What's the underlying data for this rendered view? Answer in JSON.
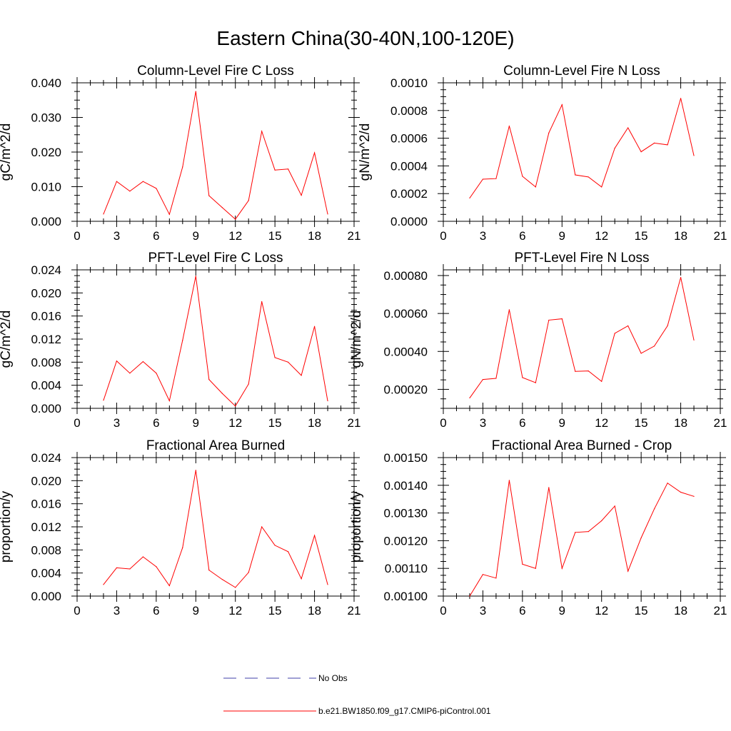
{
  "title": "Eastern China(30-40N,100-120E)",
  "colors": {
    "series": "#ff0000",
    "obs": "#4040aa",
    "axis": "#000000"
  },
  "legend": {
    "obs_label": "No Obs",
    "model_label": "b.e21.BW1850.f09_g17.CMIP6-piControl.001"
  },
  "chart_data": [
    {
      "type": "line",
      "title": "Column-Level Fire C Loss",
      "ylabel": "gC/m^2/d",
      "xlim": [
        0,
        21
      ],
      "xticks": [
        0,
        3,
        6,
        9,
        12,
        15,
        18,
        21
      ],
      "xtick_labels": [
        "0",
        "3",
        "6",
        "9",
        "12",
        "15",
        "18",
        "21"
      ],
      "ylim": [
        0,
        0.04
      ],
      "yticks": [
        0,
        0.01,
        0.02,
        0.03,
        0.04
      ],
      "ytick_labels": [
        "0.000",
        "0.010",
        "0.020",
        "0.030",
        "0.040"
      ],
      "ytop_axis": true,
      "series": [
        {
          "name": "b.e21.BW1850.f09_g17.CMIP6-piControl.001",
          "x": [
            2,
            3,
            4,
            5,
            6,
            7,
            8,
            9,
            10,
            11,
            12,
            13,
            14,
            15,
            16,
            17,
            18,
            19
          ],
          "values": [
            0.0021,
            0.0115,
            0.0087,
            0.0115,
            0.0095,
            0.002,
            0.0157,
            0.0375,
            0.0074,
            0.004,
            0.0006,
            0.006,
            0.026,
            0.0148,
            0.0151,
            0.0075,
            0.0198,
            0.0021
          ]
        }
      ]
    },
    {
      "type": "line",
      "title": "Column-Level Fire N Loss",
      "ylabel": "gN/m^2/d",
      "xlim": [
        0,
        21
      ],
      "xticks": [
        0,
        3,
        6,
        9,
        12,
        15,
        18,
        21
      ],
      "xtick_labels": [
        "0",
        "3",
        "6",
        "9",
        "12",
        "15",
        "18",
        "21"
      ],
      "ylim": [
        0,
        0.001
      ],
      "yticks": [
        0,
        0.0002,
        0.0004,
        0.0006,
        0.0008,
        0.001
      ],
      "ytick_labels": [
        "0.0000",
        "0.0002",
        "0.0004",
        "0.0006",
        "0.0008",
        "0.0010"
      ],
      "ytop_axis": true,
      "series": [
        {
          "name": "b.e21.BW1850.f09_g17.CMIP6-piControl.001",
          "x": [
            2,
            3,
            4,
            5,
            6,
            7,
            8,
            9,
            10,
            11,
            12,
            13,
            14,
            15,
            16,
            17,
            18,
            19
          ],
          "values": [
            0.000168,
            0.000304,
            0.000308,
            0.000688,
            0.000325,
            0.000248,
            0.000638,
            0.000842,
            0.000335,
            0.00032,
            0.000248,
            0.000528,
            0.000675,
            0.000502,
            0.000565,
            0.000552,
            0.000888,
            0.000475
          ]
        }
      ]
    },
    {
      "type": "line",
      "title": "PFT-Level Fire C Loss",
      "ylabel": "gC/m^2/d",
      "xlim": [
        0,
        21
      ],
      "xticks": [
        0,
        3,
        6,
        9,
        12,
        15,
        18,
        21
      ],
      "xtick_labels": [
        "0",
        "3",
        "6",
        "9",
        "12",
        "15",
        "18",
        "21"
      ],
      "ylim": [
        0,
        0.024
      ],
      "yticks": [
        0,
        0.004,
        0.008,
        0.012,
        0.016,
        0.02,
        0.024
      ],
      "ytick_labels": [
        "0.000",
        "0.004",
        "0.008",
        "0.012",
        "0.016",
        "0.020",
        "0.024"
      ],
      "ytop_axis": true,
      "series": [
        {
          "name": "b.e21.BW1850.f09_g17.CMIP6-piControl.001",
          "x": [
            2,
            3,
            4,
            5,
            6,
            7,
            8,
            9,
            10,
            11,
            12,
            13,
            14,
            15,
            16,
            17,
            18,
            19
          ],
          "values": [
            0.0014,
            0.0082,
            0.0061,
            0.0081,
            0.0061,
            0.0013,
            0.0118,
            0.0229,
            0.005,
            0.0026,
            0.0004,
            0.0042,
            0.0185,
            0.0088,
            0.008,
            0.0057,
            0.0142,
            0.0013
          ]
        }
      ]
    },
    {
      "type": "line",
      "title": "PFT-Level Fire N Loss",
      "ylabel": "gN/m^2/d",
      "xlim": [
        0,
        21
      ],
      "xticks": [
        0,
        3,
        6,
        9,
        12,
        15,
        18,
        21
      ],
      "xtick_labels": [
        "0",
        "3",
        "6",
        "9",
        "12",
        "15",
        "18",
        "21"
      ],
      "ylim": [
        0.0001,
        0.00083
      ],
      "yticks": [
        0.0002,
        0.0004,
        0.0006,
        0.0008
      ],
      "ytick_labels": [
        "0.00020",
        "0.00040",
        "0.00060",
        "0.00080"
      ],
      "ytop_axis": false,
      "series": [
        {
          "name": "b.e21.BW1850.f09_g17.CMIP6-piControl.001",
          "x": [
            2,
            3,
            4,
            5,
            6,
            7,
            8,
            9,
            10,
            11,
            12,
            13,
            14,
            15,
            16,
            17,
            18,
            19
          ],
          "values": [
            0.000155,
            0.000252,
            0.000258,
            0.00062,
            0.000262,
            0.000235,
            0.000565,
            0.000572,
            0.000295,
            0.000297,
            0.000242,
            0.000495,
            0.000535,
            0.00039,
            0.000428,
            0.000535,
            0.00079,
            0.00046
          ]
        }
      ]
    },
    {
      "type": "line",
      "title": "Fractional Area Burned",
      "ylabel": "proportion/y",
      "xlim": [
        0,
        21
      ],
      "xticks": [
        0,
        3,
        6,
        9,
        12,
        15,
        18,
        21
      ],
      "xtick_labels": [
        "0",
        "3",
        "6",
        "9",
        "12",
        "15",
        "18",
        "21"
      ],
      "ylim": [
        0,
        0.024
      ],
      "yticks": [
        0,
        0.004,
        0.008,
        0.012,
        0.016,
        0.02,
        0.024
      ],
      "ytick_labels": [
        "0.000",
        "0.004",
        "0.008",
        "0.012",
        "0.016",
        "0.020",
        "0.024"
      ],
      "ytop_axis": true,
      "series": [
        {
          "name": "b.e21.BW1850.f09_g17.CMIP6-piControl.001",
          "x": [
            2,
            3,
            4,
            5,
            6,
            7,
            8,
            9,
            10,
            11,
            12,
            13,
            14,
            15,
            16,
            17,
            18,
            19
          ],
          "values": [
            0.002,
            0.0049,
            0.0047,
            0.0068,
            0.0051,
            0.0018,
            0.0084,
            0.0218,
            0.0045,
            0.0029,
            0.0015,
            0.0041,
            0.012,
            0.0088,
            0.0077,
            0.003,
            0.0105,
            0.002
          ]
        }
      ]
    },
    {
      "type": "line",
      "title": "Fractional Area Burned - Crop",
      "ylabel": "proportion/y",
      "xlim": [
        0,
        21
      ],
      "xticks": [
        0,
        3,
        6,
        9,
        12,
        15,
        18,
        21
      ],
      "xtick_labels": [
        "0",
        "3",
        "6",
        "9",
        "12",
        "15",
        "18",
        "21"
      ],
      "ylim": [
        0.001,
        0.0015
      ],
      "yticks": [
        0.001,
        0.0011,
        0.0012,
        0.0013,
        0.0014,
        0.0015
      ],
      "ytick_labels": [
        "0.00100",
        "0.00110",
        "0.00120",
        "0.00130",
        "0.00140",
        "0.00150"
      ],
      "ytop_axis": true,
      "series": [
        {
          "name": "b.e21.BW1850.f09_g17.CMIP6-piControl.001",
          "x": [
            2,
            3,
            4,
            5,
            6,
            7,
            8,
            9,
            10,
            11,
            12,
            13,
            14,
            15,
            16,
            17,
            18,
            19
          ],
          "values": [
            0.001,
            0.001078,
            0.001065,
            0.001418,
            0.001115,
            0.0011,
            0.001392,
            0.0011,
            0.00123,
            0.001233,
            0.001272,
            0.001325,
            0.00109,
            0.00121,
            0.001315,
            0.001408,
            0.001375,
            0.00136
          ]
        }
      ]
    }
  ]
}
